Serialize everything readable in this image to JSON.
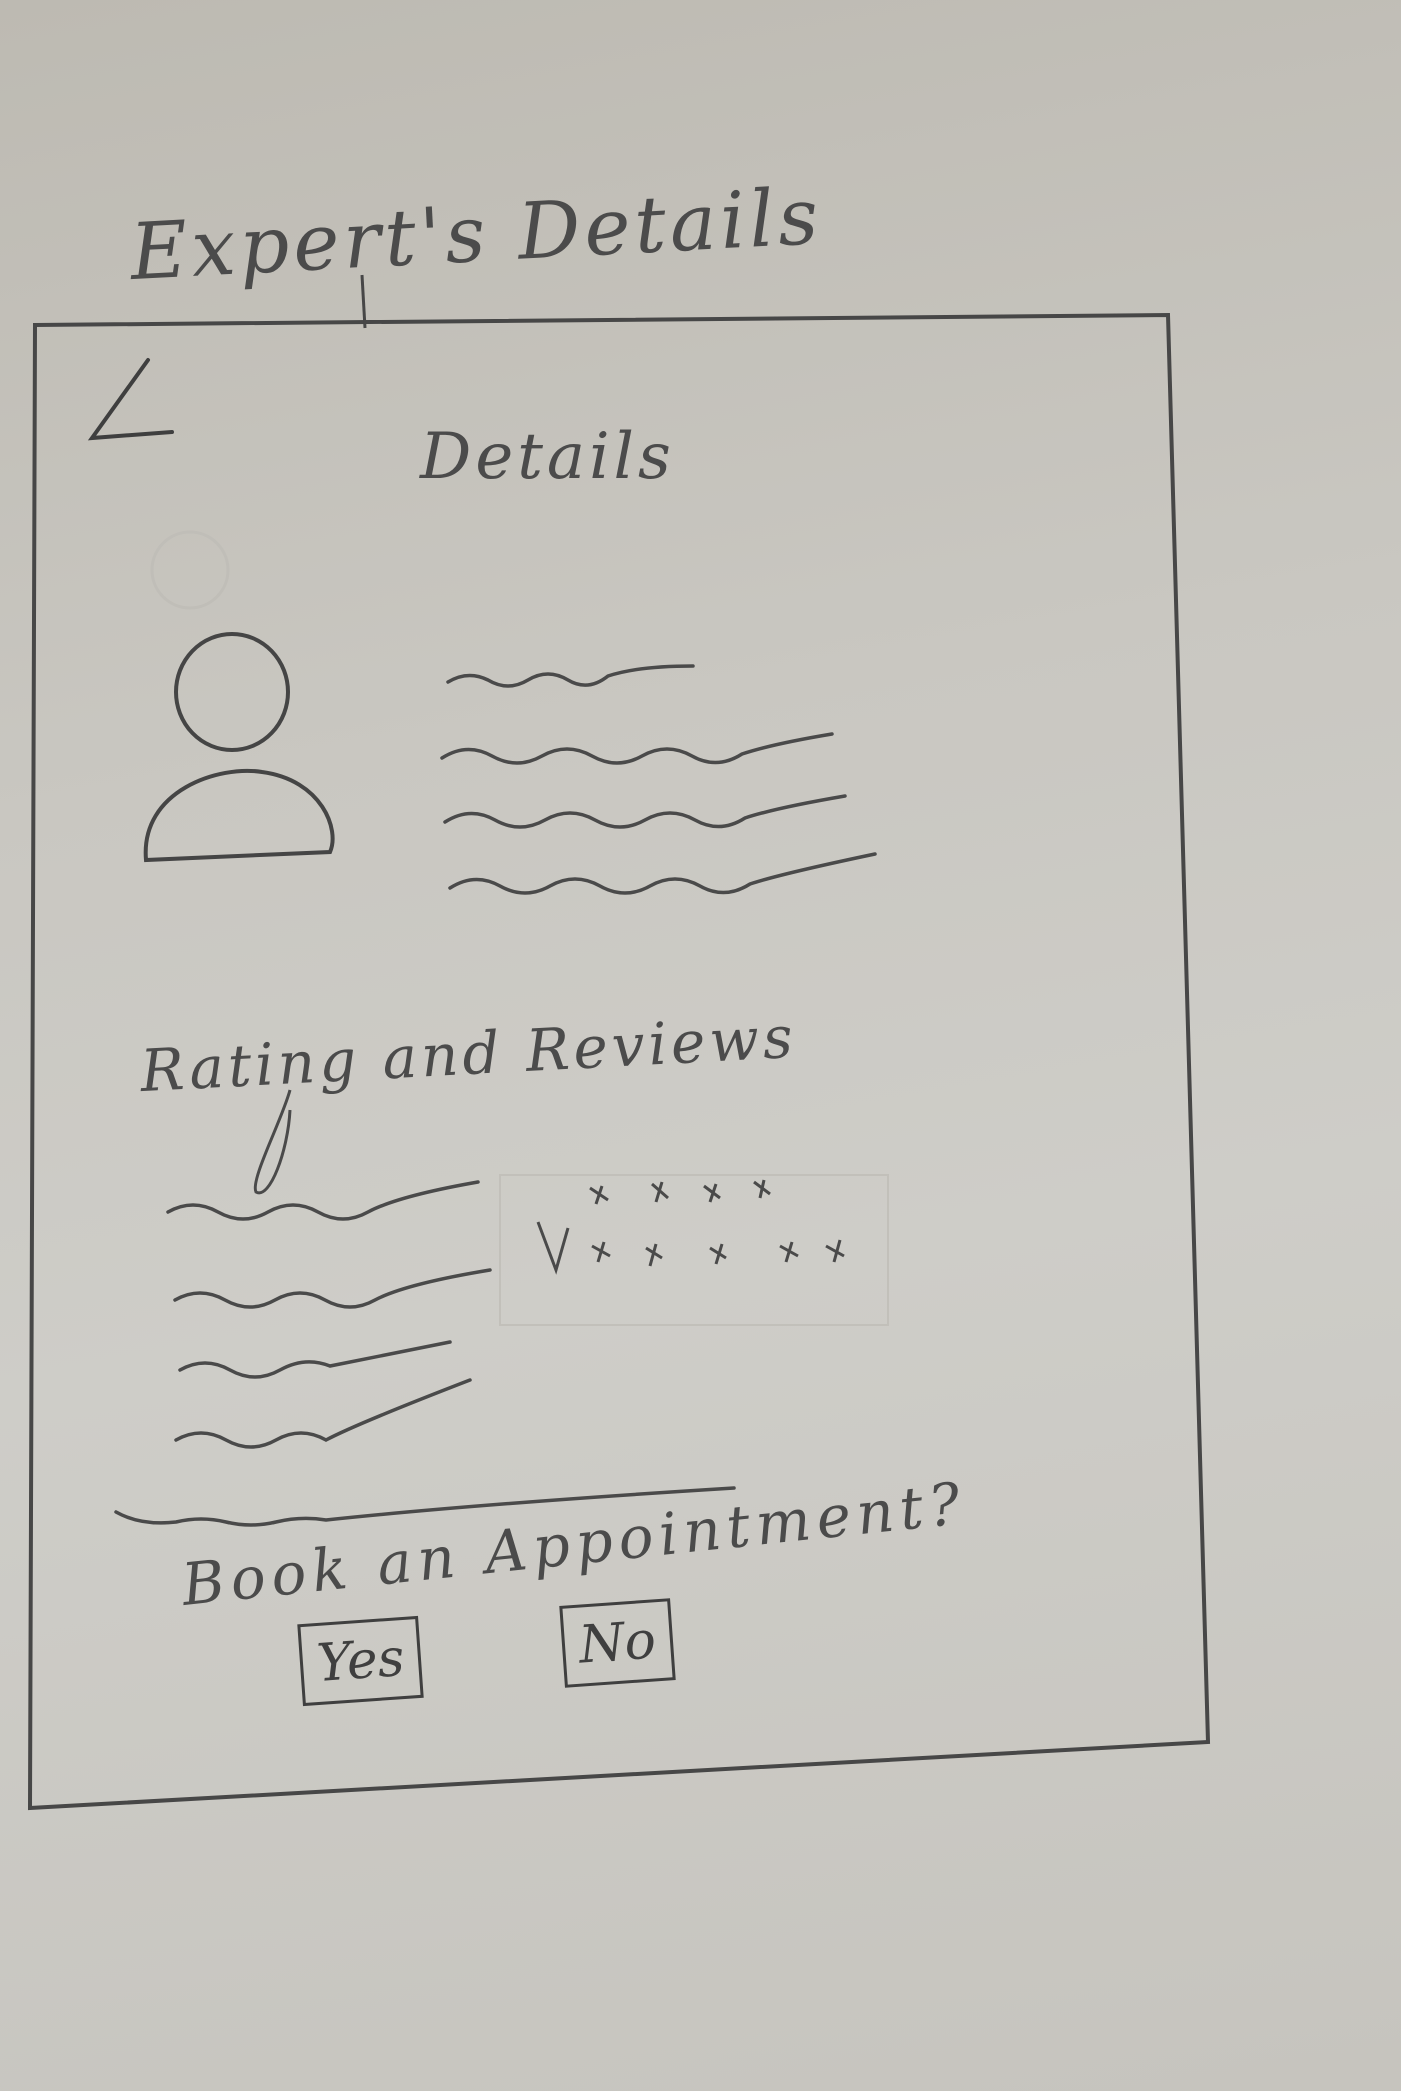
{
  "page_title": "Expert's Details",
  "screen": {
    "title": "Details",
    "reviews_heading": "Rating and Reviews",
    "booking": {
      "prompt": "Book an Appointment?",
      "yes_label": "Yes",
      "no_label": "No"
    }
  },
  "icons": [
    "back-arrow-icon",
    "person-avatar-icon",
    "star-rating-icon"
  ]
}
